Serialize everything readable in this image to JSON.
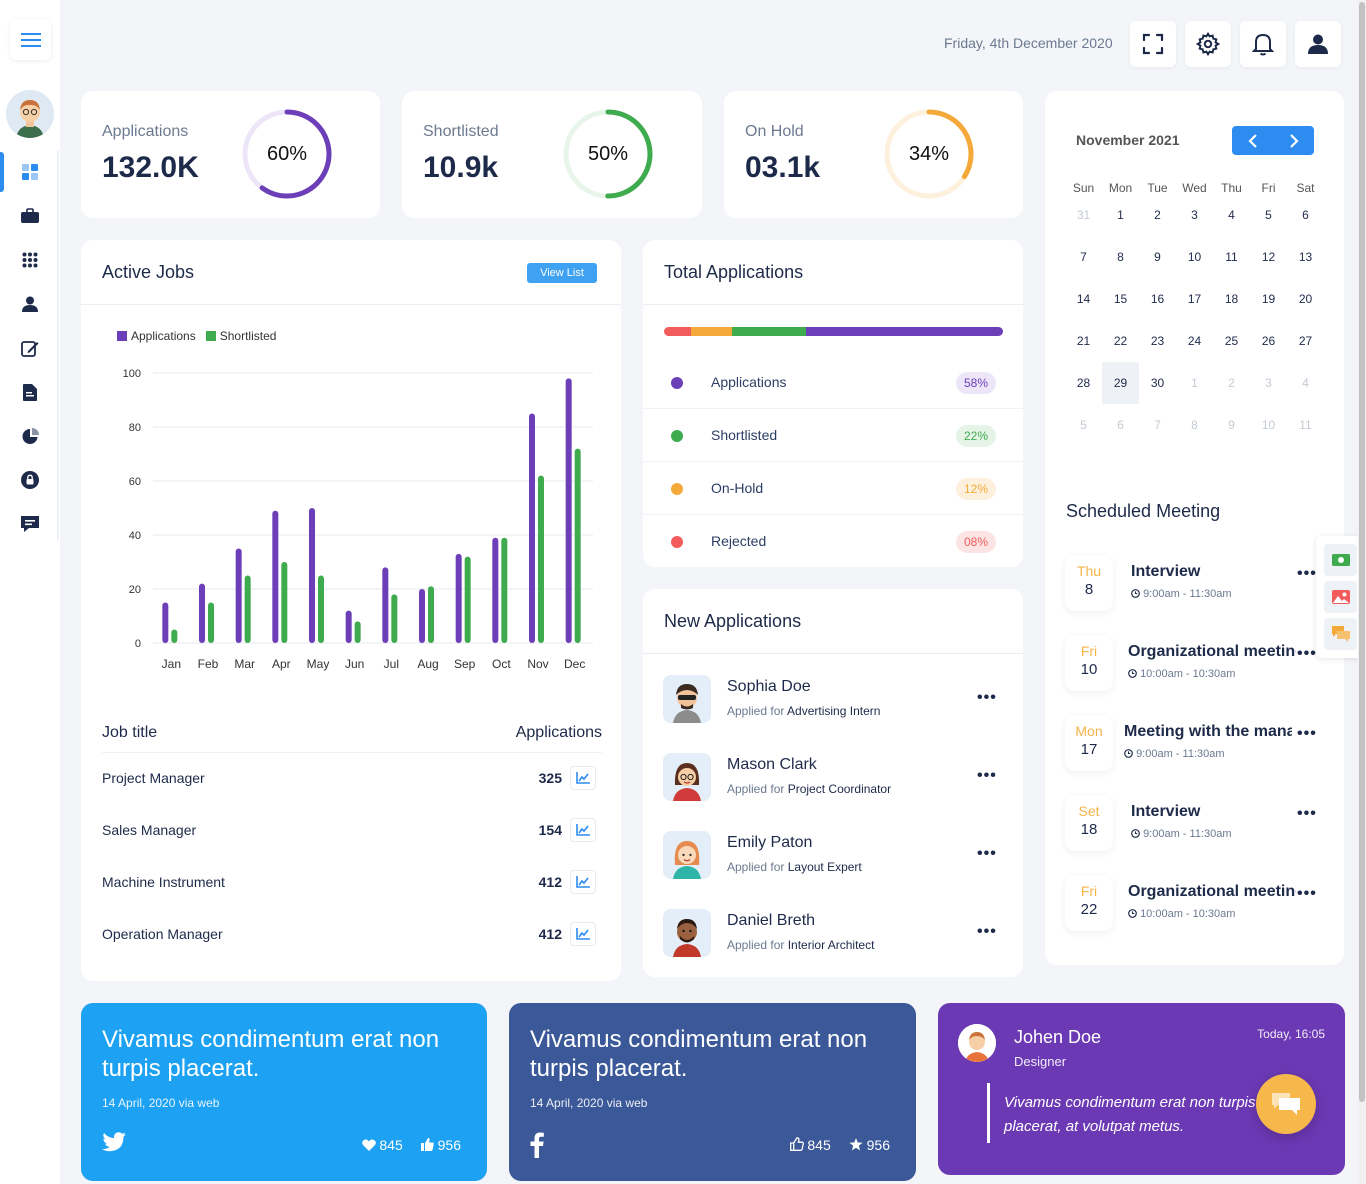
{
  "header": {
    "date": "Friday, 4th December 2020"
  },
  "stats": [
    {
      "label": "Applications",
      "value": "132.0K",
      "percent_label": "60%",
      "percent": 60,
      "color": "#6c3fb8",
      "track": "#ece6f8"
    },
    {
      "label": "Shortlisted",
      "value": "10.9k",
      "percent_label": "50%",
      "percent": 50,
      "color": "#3fab4f",
      "track": "#e8f5ea"
    },
    {
      "label": "On Hold",
      "value": "03.1k",
      "percent_label": "34%",
      "percent": 34,
      "color": "#f6a93b",
      "track": "#fdf0dc"
    }
  ],
  "active_jobs": {
    "title": "Active Jobs",
    "view_list": "View List",
    "table_head": {
      "job": "Job title",
      "apps": "Applications"
    },
    "rows": [
      {
        "title": "Project Manager",
        "value": "325"
      },
      {
        "title": "Sales Manager",
        "value": "154"
      },
      {
        "title": "Machine Instrument",
        "value": "412"
      },
      {
        "title": "Operation Manager",
        "value": "412"
      }
    ]
  },
  "chart_data": {
    "type": "bar",
    "categories": [
      "Jan",
      "Feb",
      "Mar",
      "Apr",
      "May",
      "Jun",
      "Jul",
      "Aug",
      "Sep",
      "Oct",
      "Nov",
      "Dec"
    ],
    "series": [
      {
        "name": "Applications",
        "color": "#6c3fb8",
        "values": [
          15,
          22,
          35,
          49,
          50,
          12,
          28,
          20,
          33,
          39,
          85,
          98
        ]
      },
      {
        "name": "Shortlisted",
        "color": "#3fab4f",
        "values": [
          5,
          15,
          25,
          30,
          25,
          8,
          18,
          21,
          32,
          39,
          62,
          72
        ]
      }
    ],
    "ylim": [
      0,
      100
    ],
    "yticks": [
      "0",
      "20",
      "40",
      "60",
      "80",
      "100"
    ],
    "grid": true,
    "legend": "top-left"
  },
  "total_applications": {
    "title": "Total Applications",
    "segments": [
      {
        "name": "Rejected",
        "value": 8,
        "color": "#f25c5c"
      },
      {
        "name": "On-Hold",
        "value": 12,
        "color": "#f6a93b"
      },
      {
        "name": "Shortlisted",
        "value": 22,
        "color": "#3fab4f"
      },
      {
        "name": "Applications",
        "value": 58,
        "color": "#6c3fb8"
      }
    ],
    "rows": [
      {
        "name": "Applications",
        "pct": "58%",
        "color": "#6c3fb8",
        "pill_bg": "#ece6f8",
        "pill_fg": "#6c3fb8"
      },
      {
        "name": "Shortlisted",
        "pct": "22%",
        "color": "#3fab4f",
        "pill_bg": "#e6f4e8",
        "pill_fg": "#3fab4f"
      },
      {
        "name": "On-Hold",
        "pct": "12%",
        "color": "#f6a93b",
        "pill_bg": "#fdf0dc",
        "pill_fg": "#f6a93b"
      },
      {
        "name": "Rejected",
        "pct": "08%",
        "color": "#f25c5c",
        "pill_bg": "#fde4e4",
        "pill_fg": "#f25c5c"
      }
    ]
  },
  "new_applications": {
    "title": "New Applications",
    "applied_for": "Applied for",
    "items": [
      {
        "name": "Sophia Doe",
        "role": "Advertising Intern"
      },
      {
        "name": "Mason Clark",
        "role": "Project Coordinator"
      },
      {
        "name": "Emily Paton",
        "role": "Layout Expert"
      },
      {
        "name": "Daniel Breth",
        "role": "Interior Architect"
      }
    ]
  },
  "calendar": {
    "month": "November 2021",
    "weekdays": [
      "Sun",
      "Mon",
      "Tue",
      "Wed",
      "Thu",
      "Fri",
      "Sat"
    ],
    "weeks": [
      [
        "31",
        "1",
        "2",
        "3",
        "4",
        "5",
        "6"
      ],
      [
        "7",
        "8",
        "9",
        "10",
        "11",
        "12",
        "13"
      ],
      [
        "14",
        "15",
        "16",
        "17",
        "18",
        "19",
        "20"
      ],
      [
        "21",
        "22",
        "23",
        "24",
        "25",
        "26",
        "27"
      ],
      [
        "28",
        "29",
        "30",
        "1",
        "2",
        "3",
        "4"
      ],
      [
        "5",
        "6",
        "7",
        "8",
        "9",
        "10",
        "11"
      ]
    ],
    "selected": "29"
  },
  "meetings": {
    "title": "Scheduled Meeting",
    "items": [
      {
        "dow": "Thu",
        "day": "8",
        "title": "Interview",
        "time": "9:00am - 11:30am"
      },
      {
        "dow": "Fri",
        "day": "10",
        "title": "Organizational meeting",
        "time": "10:00am - 10:30am"
      },
      {
        "dow": "Mon",
        "day": "17",
        "title": "Meeting with the manager",
        "time": "9:00am - 11:30am"
      },
      {
        "dow": "Set",
        "day": "18",
        "title": "Interview",
        "time": "9:00am - 11:30am"
      },
      {
        "dow": "Fri",
        "day": "22",
        "title": "Organizational meeting",
        "time": "10:00am - 10:30am"
      }
    ]
  },
  "posts": [
    {
      "text": "Vivamus condimentum erat non turpis placerat.",
      "date": "14 April, 2020 via web",
      "stat1": "845",
      "stat2": "956",
      "bg": "#1da1f2",
      "network": "twitter"
    },
    {
      "text": "Vivamus condimentum erat non turpis placerat.",
      "date": "14 April, 2020 via web",
      "stat1": "845",
      "stat2": "956",
      "bg": "#3b5998",
      "network": "facebook"
    }
  ],
  "testimonial": {
    "name": "Johen Doe",
    "role": "Designer",
    "time": "Today, 16:05",
    "text": "Vivamus condimentum erat non turpis placerat, at volutpat metus."
  }
}
